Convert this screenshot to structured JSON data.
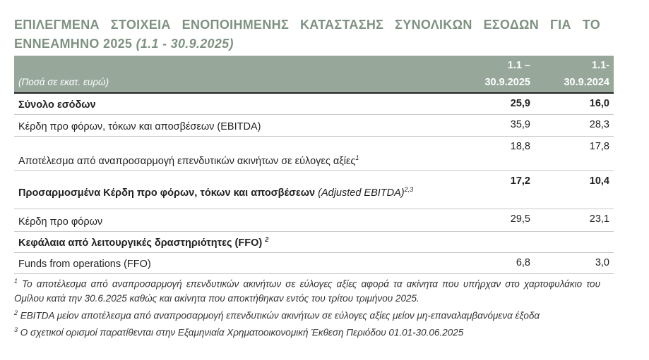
{
  "title": {
    "main": "ΕΠΙΛΕΓΜΕΝΑ ΣΤΟΙΧΕΙΑ ΕΝΟΠΟΙΗΜΕΝΗΣ ΚΑΤΑΣΤΑΣΗΣ ΣΥΝΟΛΙΚΩΝ ΕΣΟΔΩΝ ΓΙΑ ΤΟ ΕΝΝΕΑΜΗΝΟ 2025",
    "period": "(1.1 - 30.9.2025)"
  },
  "table": {
    "header": {
      "label": "(Ποσά σε εκατ. ευρώ)",
      "col1_a": "1.1 –",
      "col1_b": "30.9.2025",
      "col2_a": "1.1-",
      "col2_b": "30.9.2024"
    },
    "rows": [
      {
        "label": "Σύνολο εσόδων",
        "sup": "",
        "v1": "25,9",
        "v2": "16,0"
      },
      {
        "label": "Κέρδη προ φόρων, τόκων και αποσβέσεων (EBITDA)",
        "sup": "",
        "v1": "35,9",
        "v2": "28,3"
      },
      {
        "label": "Αποτέλεσμα από αναπροσαρμογή επενδυτικών ακινήτων σε εύλογες αξίες",
        "sup": "1",
        "v1": "18,8",
        "v2": "17,8"
      },
      {
        "label": "Προσαρμοσμένα Κέρδη προ φόρων, τόκων και αποσβέσεων",
        "label_italic": "(Adjusted EBITDA)",
        "sup": "2,3",
        "v1": "17,2",
        "v2": "10,4"
      },
      {
        "label": "Κέρδη προ φόρων",
        "sup": "",
        "v1": "29,5",
        "v2": "23,1"
      },
      {
        "label": "Κεφάλαια από λειτουργικές δραστηριότητες (FFO)",
        "sup": "2",
        "v1": "",
        "v2": ""
      },
      {
        "label": "Funds from operations (FFO)",
        "sup": "",
        "v1": "6,8",
        "v2": "3,0"
      }
    ]
  },
  "footnotes": [
    {
      "n": "1",
      "text": "Το αποτέλεσμα από αναπροσαρμογή επενδυτικών ακινήτων σε εύλογες αξίες αφορά τα ακίνητα που υπήρχαν στο χαρτοφυλάκιο του Ομίλου κατά την 30.6.2025 καθώς και ακίνητα που αποκτήθηκαν εντός του τρίτου τριμήνου 2025."
    },
    {
      "n": "2",
      "text": "EBITDA μείον αποτέλεσμα από αναπροσαρμογή επενδυτικών ακινήτων σε εύλογες αξίες μείον μη-επαναλαμβανόμενα έξοδα"
    },
    {
      "n": "3",
      "text": "Ο σχετικοί ορισμοί παρατίθενται στην Εξαμηνιαία Χρηματοοικονομική Έκθεση Περιόδου 01.01-30.06.2025"
    }
  ]
}
